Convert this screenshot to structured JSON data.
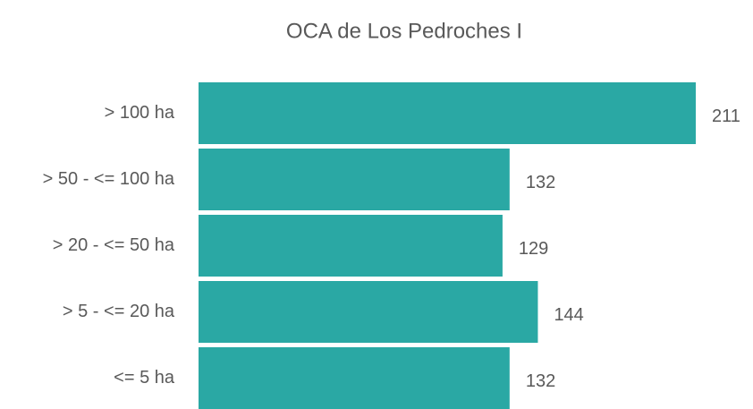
{
  "chart_data": {
    "type": "barh",
    "title": "OCA de Los Pedroches I",
    "categories": [
      "> 100 ha",
      "> 50 - <= 100 ha",
      "> 20 - <= 50 ha",
      "> 5 - <= 20 ha",
      "<= 5 ha"
    ],
    "values": [
      211,
      132,
      129,
      144,
      132
    ],
    "color": "#2aa8a4"
  }
}
